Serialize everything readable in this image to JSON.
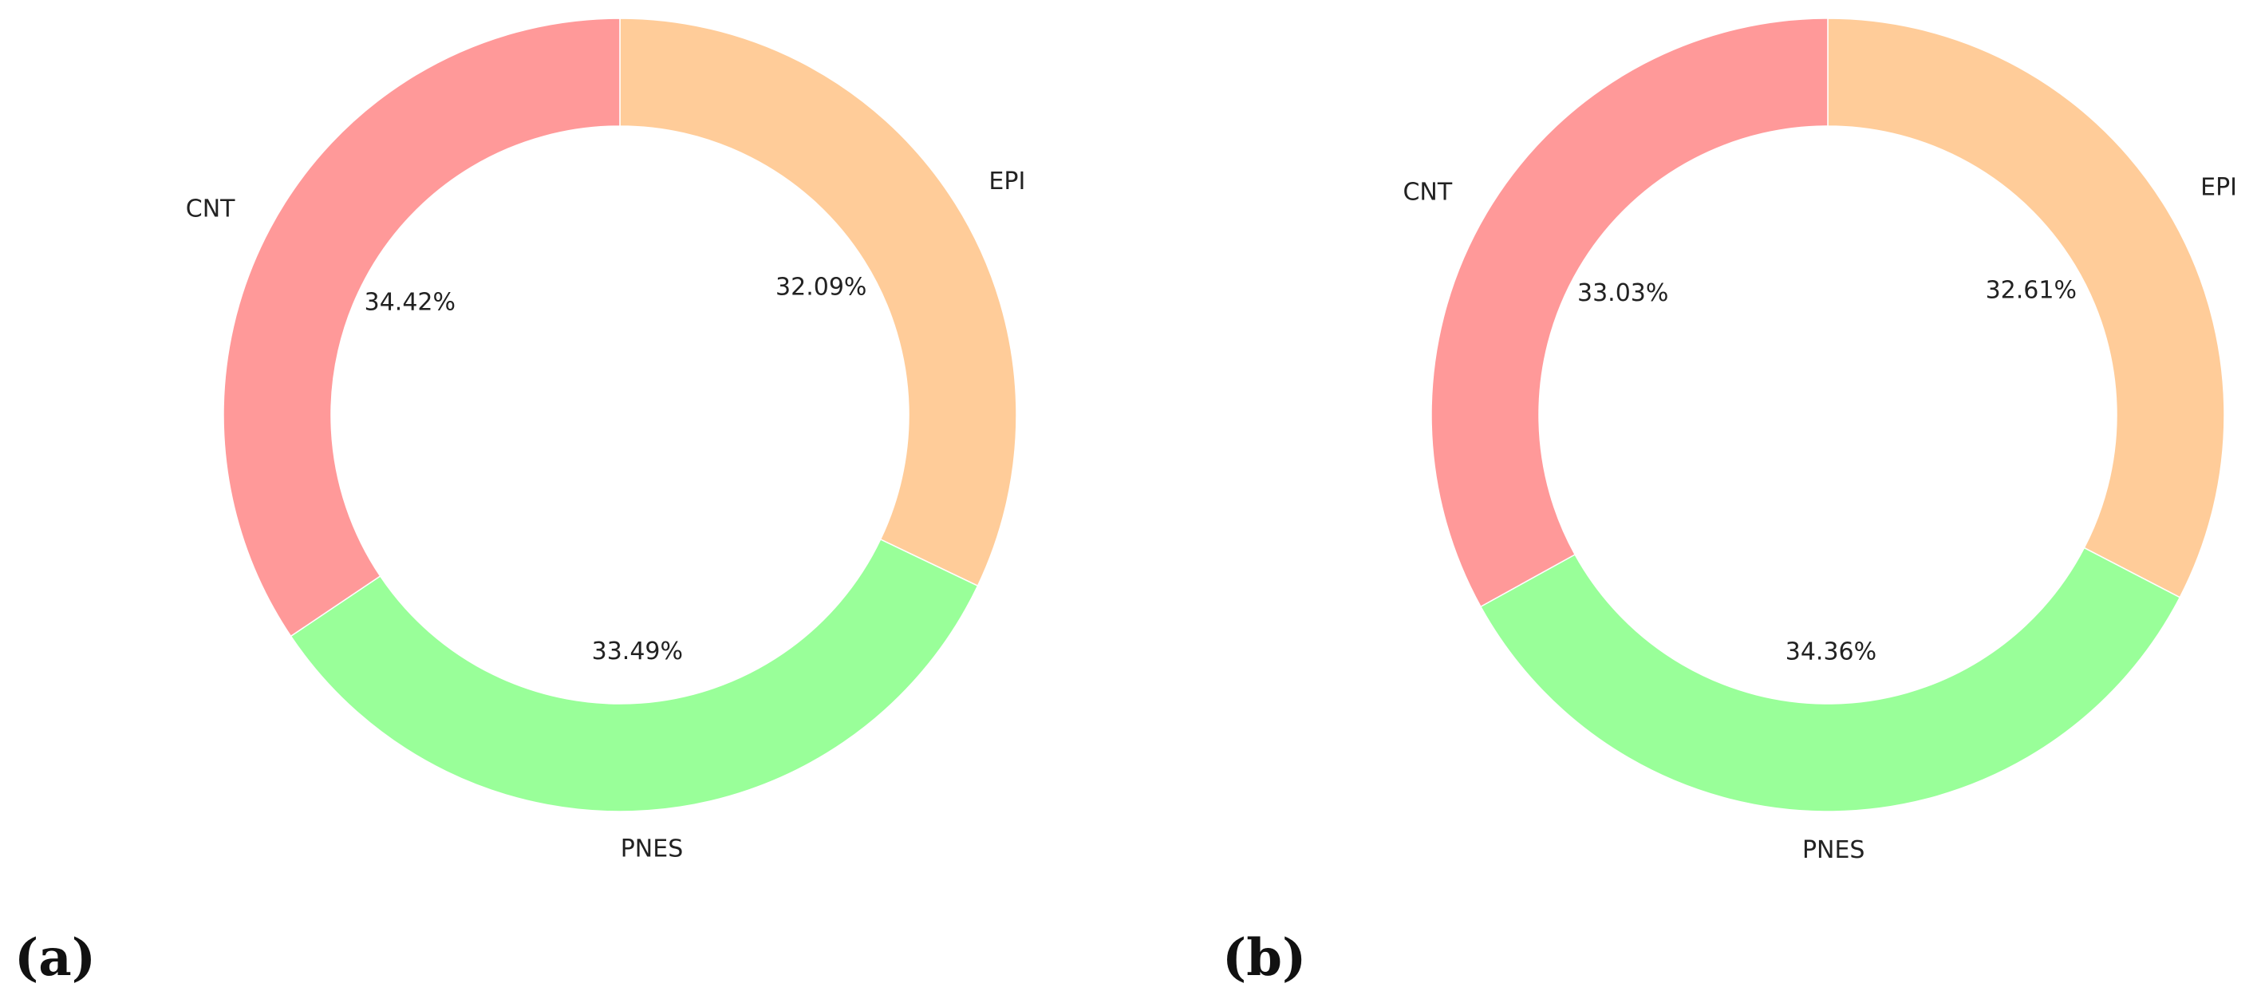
{
  "chart_data": [
    {
      "type": "pie",
      "panel_label": "(a)",
      "donut": true,
      "start_angle_deg": 90,
      "direction": "clockwise",
      "slices": [
        {
          "label": "EPI",
          "value": 32.09,
          "pct_text": "32.09%",
          "color": "#ffcc99"
        },
        {
          "label": "PNES",
          "value": 33.49,
          "pct_text": "33.49%",
          "color": "#99ff99"
        },
        {
          "label": "CNT",
          "value": 34.42,
          "pct_text": "34.42%",
          "color": "#ff9999"
        }
      ]
    },
    {
      "type": "pie",
      "panel_label": "(b)",
      "donut": true,
      "start_angle_deg": 90,
      "direction": "clockwise",
      "slices": [
        {
          "label": "EPI",
          "value": 32.61,
          "pct_text": "32.61%",
          "color": "#ffcc99"
        },
        {
          "label": "PNES",
          "value": 34.36,
          "pct_text": "34.36%",
          "color": "#99ff99"
        },
        {
          "label": "CNT",
          "value": 33.03,
          "pct_text": "33.03%",
          "color": "#ff9999"
        }
      ]
    }
  ]
}
